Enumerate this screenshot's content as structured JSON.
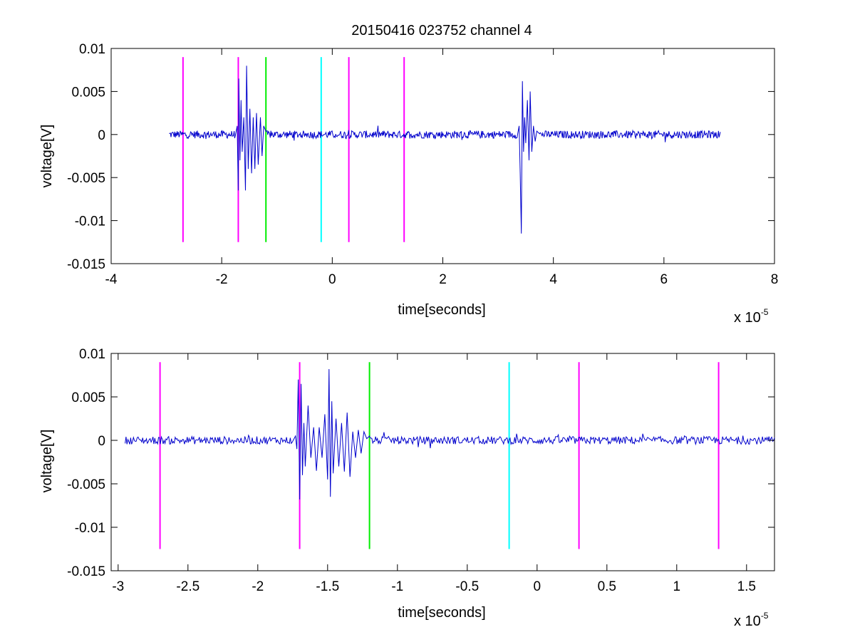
{
  "title": "20150416 023752 channel 4",
  "colors": {
    "signal": "#0000cc",
    "magenta": "#ff00ff",
    "green": "#00ee00",
    "cyan": "#00ffff"
  },
  "chart_data": [
    {
      "type": "line",
      "title": "20150416 023752 channel 4",
      "xlabel": "time[seconds]",
      "ylabel": "voltage[V]",
      "x_scale_label": "x 10",
      "x_scale_exponent": "-5",
      "xlim": [
        -4,
        8
      ],
      "ylim": [
        -0.015,
        0.01
      ],
      "xticks": [
        "-4",
        "-2",
        "0",
        "2",
        "4",
        "6",
        "8"
      ],
      "xtick_values": [
        -4,
        -2,
        0,
        2,
        4,
        6,
        8
      ],
      "yticks": [
        "0.01",
        "0.005",
        "0",
        "-0.005",
        "-0.01",
        "-0.015"
      ],
      "ytick_values": [
        0.01,
        0.005,
        0,
        -0.005,
        -0.01,
        -0.015
      ],
      "grid": false,
      "markers": [
        {
          "x": -2.7,
          "color": "magenta",
          "ymin": -0.0125,
          "ymax": 0.009
        },
        {
          "x": -1.7,
          "color": "magenta",
          "ymin": -0.0125,
          "ymax": 0.009
        },
        {
          "x": -1.2,
          "color": "green",
          "ymin": -0.0125,
          "ymax": 0.009
        },
        {
          "x": -0.2,
          "color": "cyan",
          "ymin": -0.0125,
          "ymax": 0.009
        },
        {
          "x": 0.3,
          "color": "magenta",
          "ymin": -0.0125,
          "ymax": 0.009
        },
        {
          "x": 1.3,
          "color": "magenta",
          "ymin": -0.0125,
          "ymax": 0.009
        }
      ],
      "signal": {
        "x_start": -2.95,
        "x_end": 7.02,
        "bursts": [
          {
            "x": -1.7,
            "x_end": -1.2,
            "points": [
              [
                -1.72,
                0.001
              ],
              [
                -1.7,
                -0.0065
              ],
              [
                -1.69,
                0.0065
              ],
              [
                -1.67,
                -0.003
              ],
              [
                -1.65,
                0.004
              ],
              [
                -1.63,
                -0.002
              ],
              [
                -1.6,
                0.002
              ],
              [
                -1.57,
                -0.0065
              ],
              [
                -1.55,
                0.008
              ],
              [
                -1.52,
                -0.004
              ],
              [
                -1.49,
                0.003
              ],
              [
                -1.46,
                -0.0045
              ],
              [
                -1.43,
                0.002
              ],
              [
                -1.4,
                -0.004
              ],
              [
                -1.37,
                0.0025
              ],
              [
                -1.34,
                -0.0035
              ],
              [
                -1.3,
                0.002
              ],
              [
                -1.27,
                -0.0025
              ],
              [
                -1.24,
                0.001
              ],
              [
                -1.21,
                0.0005
              ]
            ]
          },
          {
            "x": 3.4,
            "x_end": 3.75,
            "points": [
              [
                3.38,
                0.001
              ],
              [
                3.4,
                -0.0045
              ],
              [
                3.42,
                -0.0115
              ],
              [
                3.44,
                0.0062
              ],
              [
                3.46,
                -0.002
              ],
              [
                3.48,
                0.002
              ],
              [
                3.5,
                -0.001
              ],
              [
                3.53,
                0.004
              ],
              [
                3.56,
                -0.003
              ],
              [
                3.58,
                0.005
              ],
              [
                3.61,
                -0.002
              ],
              [
                3.64,
                0.001
              ],
              [
                3.67,
                -0.0008
              ],
              [
                3.7,
                0.0004
              ]
            ]
          }
        ]
      }
    },
    {
      "type": "line",
      "xlabel": "time[seconds]",
      "ylabel": "voltage[V]",
      "x_scale_label": "x 10",
      "x_scale_exponent": "-5",
      "xlim": [
        -3.05,
        1.7
      ],
      "ylim": [
        -0.015,
        0.01
      ],
      "xticks": [
        "-3",
        "-2.5",
        "-2",
        "-1.5",
        "-1",
        "-0.5",
        "0",
        "0.5",
        "1",
        "1.5"
      ],
      "xtick_values": [
        -3,
        -2.5,
        -2,
        -1.5,
        -1,
        -0.5,
        0,
        0.5,
        1,
        1.5
      ],
      "yticks": [
        "0.01",
        "0.005",
        "0",
        "-0.005",
        "-0.01",
        "-0.015"
      ],
      "ytick_values": [
        0.01,
        0.005,
        0,
        -0.005,
        -0.01,
        -0.015
      ],
      "grid": false,
      "markers": [
        {
          "x": -2.7,
          "color": "magenta",
          "ymin": -0.0125,
          "ymax": 0.009
        },
        {
          "x": -1.7,
          "color": "magenta",
          "ymin": -0.0125,
          "ymax": 0.009
        },
        {
          "x": -1.2,
          "color": "green",
          "ymin": -0.0125,
          "ymax": 0.009
        },
        {
          "x": -0.2,
          "color": "cyan",
          "ymin": -0.0125,
          "ymax": 0.009
        },
        {
          "x": 0.3,
          "color": "magenta",
          "ymin": -0.0125,
          "ymax": 0.009
        },
        {
          "x": 1.3,
          "color": "magenta",
          "ymin": -0.0125,
          "ymax": 0.009
        }
      ],
      "signal": {
        "x_start": -2.95,
        "x_end": 1.7,
        "bursts": [
          {
            "x": -1.7,
            "x_end": -1.2,
            "points": [
              [
                -1.73,
                0.0005
              ],
              [
                -1.72,
                -0.001
              ],
              [
                -1.71,
                0.007
              ],
              [
                -1.7,
                -0.0068
              ],
              [
                -1.69,
                0.0065
              ],
              [
                -1.68,
                -0.004
              ],
              [
                -1.67,
                0.002
              ],
              [
                -1.66,
                -0.003
              ],
              [
                -1.64,
                0.004
              ],
              [
                -1.62,
                -0.002
              ],
              [
                -1.6,
                0.0015
              ],
              [
                -1.58,
                -0.0035
              ],
              [
                -1.56,
                0.0015
              ],
              [
                -1.54,
                -0.002
              ],
              [
                -1.52,
                0.003
              ],
              [
                -1.5,
                -0.0045
              ],
              [
                -1.49,
                0.0082
              ],
              [
                -1.48,
                -0.0065
              ],
              [
                -1.47,
                0.0045
              ],
              [
                -1.46,
                -0.0038
              ],
              [
                -1.44,
                0.0025
              ],
              [
                -1.42,
                -0.003
              ],
              [
                -1.4,
                0.002
              ],
              [
                -1.38,
                -0.0036
              ],
              [
                -1.36,
                0.0032
              ],
              [
                -1.34,
                -0.0042
              ],
              [
                -1.32,
                0.001
              ],
              [
                -1.3,
                -0.002
              ],
              [
                -1.28,
                0.0012
              ],
              [
                -1.26,
                -0.0015
              ],
              [
                -1.24,
                0.001
              ],
              [
                -1.22,
                0.0002
              ],
              [
                -1.2,
                0.0005
              ]
            ]
          }
        ]
      }
    }
  ]
}
